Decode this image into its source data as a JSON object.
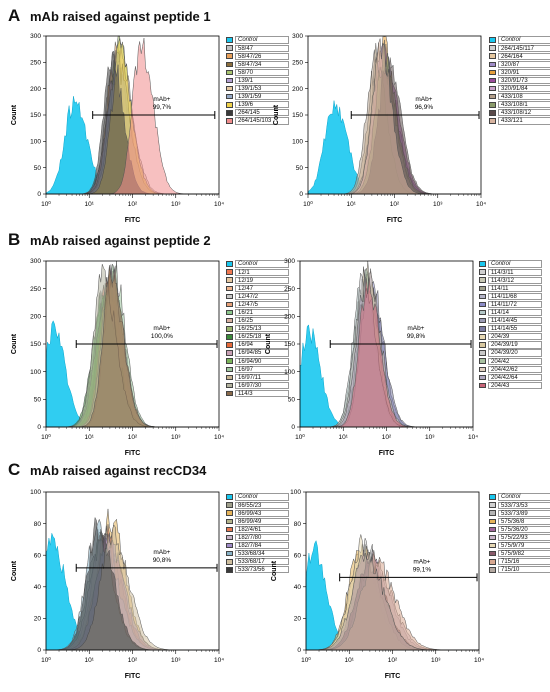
{
  "sections": [
    {
      "letter": "A",
      "title": "mAb raised against peptide 1"
    },
    {
      "letter": "B",
      "title": "mAb raised against peptide 2"
    },
    {
      "letter": "C",
      "title": "mAb raised against recCD34"
    }
  ],
  "chart_data": [
    {
      "id": "A1",
      "type": "area",
      "title": "",
      "xlabel": "FITC",
      "ylabel": "Count",
      "xscale": "log",
      "xlim": [
        1,
        10000
      ],
      "ylim": [
        0,
        300
      ],
      "yticks": [
        0,
        50,
        100,
        150,
        200,
        250,
        300
      ],
      "xticks": [
        "10⁰",
        "10¹",
        "10²",
        "10³",
        "10⁴"
      ],
      "gate": {
        "label": "mAb+",
        "percent": "99,7%",
        "x_range": [
          12,
          8000
        ],
        "y": 150
      },
      "legend": [
        "Control",
        "58/47",
        "58/47/26",
        "58/47/34",
        "58/70",
        "139/1",
        "139/1/53",
        "139/1/59",
        "139/6",
        "264/145",
        "264/145/103"
      ],
      "colors": [
        "#19c8ef",
        "#c0c0c0",
        "#e8a05a",
        "#8c6e3c",
        "#a8c46e",
        "#b4a0d2",
        "#e6c8a0",
        "#96aac8",
        "#f0d24a",
        "#3a3a3a",
        "#f08c8c"
      ],
      "series": [
        {
          "name": "Control",
          "peak_x": 4.5,
          "peak_y": 175,
          "width": 0.22
        },
        {
          "name": "58/47",
          "peak_x": 38,
          "peak_y": 250,
          "width": 0.2
        },
        {
          "name": "58/47/26",
          "peak_x": 40,
          "peak_y": 265,
          "width": 0.2
        },
        {
          "name": "58/47/34",
          "peak_x": 45,
          "peak_y": 270,
          "width": 0.2
        },
        {
          "name": "58/70",
          "peak_x": 48,
          "peak_y": 290,
          "width": 0.2
        },
        {
          "name": "139/1",
          "peak_x": 42,
          "peak_y": 240,
          "width": 0.22
        },
        {
          "name": "139/1/53",
          "peak_x": 50,
          "peak_y": 255,
          "width": 0.22
        },
        {
          "name": "139/1/59",
          "peak_x": 44,
          "peak_y": 245,
          "width": 0.21
        },
        {
          "name": "139/6",
          "peak_x": 52,
          "peak_y": 268,
          "width": 0.2
        },
        {
          "name": "264/145",
          "peak_x": 33,
          "peak_y": 262,
          "width": 0.19
        },
        {
          "name": "264/145/103",
          "peak_x": 160,
          "peak_y": 288,
          "width": 0.2
        }
      ]
    },
    {
      "id": "A2",
      "type": "area",
      "title": "",
      "xlabel": "FITC",
      "ylabel": "Count",
      "xscale": "log",
      "xlim": [
        1,
        10000
      ],
      "ylim": [
        0,
        300
      ],
      "yticks": [
        0,
        50,
        100,
        150,
        200,
        250,
        300
      ],
      "xticks": [
        "10⁰",
        "10¹",
        "10²",
        "10³",
        "10⁴"
      ],
      "gate": {
        "label": "mAb+",
        "percent": "96,9%",
        "x_range": [
          10,
          9000
        ],
        "y": 150
      },
      "legend": [
        "Control",
        "264/145/117",
        "264/164",
        "320/87",
        "320/91",
        "320/91/73",
        "320/91/84",
        "433/108",
        "433/108/1",
        "433/108/12",
        "433/121"
      ],
      "colors": [
        "#19c8ef",
        "#d0d0d0",
        "#e6c8a0",
        "#a08cc8",
        "#e6a03c",
        "#9a4a9a",
        "#c8a0c8",
        "#b4a08c",
        "#8a9a6a",
        "#5a4a4a",
        "#d8b4a0"
      ],
      "series": [
        {
          "name": "Control",
          "peak_x": 4,
          "peak_y": 172,
          "width": 0.22
        },
        {
          "name": "264/145/117",
          "peak_x": 45,
          "peak_y": 255,
          "width": 0.2
        },
        {
          "name": "264/164",
          "peak_x": 40,
          "peak_y": 265,
          "width": 0.2
        },
        {
          "name": "320/87",
          "peak_x": 60,
          "peak_y": 240,
          "width": 0.22
        },
        {
          "name": "320/91",
          "peak_x": 55,
          "peak_y": 285,
          "width": 0.2
        },
        {
          "name": "320/91/73",
          "peak_x": 65,
          "peak_y": 255,
          "width": 0.22
        },
        {
          "name": "320/91/84",
          "peak_x": 50,
          "peak_y": 260,
          "width": 0.22
        },
        {
          "name": "433/108",
          "peak_x": 35,
          "peak_y": 250,
          "width": 0.2
        },
        {
          "name": "433/108/1",
          "peak_x": 58,
          "peak_y": 262,
          "width": 0.21
        },
        {
          "name": "433/108/12",
          "peak_x": 70,
          "peak_y": 245,
          "width": 0.22
        },
        {
          "name": "433/121",
          "peak_x": 48,
          "peak_y": 268,
          "width": 0.2
        }
      ]
    },
    {
      "id": "B1",
      "type": "area",
      "title": "",
      "xlabel": "FITC",
      "ylabel": "Count",
      "xscale": "log",
      "xlim": [
        1,
        10000
      ],
      "ylim": [
        0,
        300
      ],
      "yticks": [
        0,
        50,
        100,
        150,
        200,
        250,
        300
      ],
      "xticks": [
        "10⁰",
        "10¹",
        "10²",
        "10³",
        "10⁴"
      ],
      "gate": {
        "label": "mAb+",
        "percent": "100,0%",
        "x_range": [
          5,
          9000
        ],
        "y": 150
      },
      "legend": [
        "Control",
        "12/1",
        "12/19",
        "12/47",
        "12/47/2",
        "12/47/5",
        "16/21",
        "16/25",
        "16/25/13",
        "16/25/18",
        "16/94",
        "16/94/85",
        "16/94/90",
        "16/97",
        "16/97/11",
        "16/97/30",
        "114/3"
      ],
      "colors": [
        "#19c8ef",
        "#f07850",
        "#e6c8a0",
        "#f0b48c",
        "#c8c8c8",
        "#e6a078",
        "#8cc88c",
        "#d8b0a0",
        "#9ab46e",
        "#3a8a3a",
        "#e66a3a",
        "#c8a0b4",
        "#7ab45a",
        "#a0c8a0",
        "#c8b490",
        "#b4b4a0",
        "#8a6a4a"
      ],
      "series": [
        {
          "name": "Control",
          "peak_x": 1.5,
          "peak_y": 178,
          "width": 0.2
        },
        {
          "name": "12/1",
          "peak_x": 25,
          "peak_y": 240,
          "width": 0.22
        },
        {
          "name": "12/19",
          "peak_x": 28,
          "peak_y": 250,
          "width": 0.22
        },
        {
          "name": "12/47",
          "peak_x": 24,
          "peak_y": 235,
          "width": 0.22
        },
        {
          "name": "12/47/2",
          "peak_x": 30,
          "peak_y": 255,
          "width": 0.21
        },
        {
          "name": "12/47/5",
          "peak_x": 26,
          "peak_y": 242,
          "width": 0.22
        },
        {
          "name": "16/21",
          "peak_x": 22,
          "peak_y": 248,
          "width": 0.22
        },
        {
          "name": "16/25",
          "peak_x": 32,
          "peak_y": 262,
          "width": 0.21
        },
        {
          "name": "16/25/13",
          "peak_x": 27,
          "peak_y": 258,
          "width": 0.22
        },
        {
          "name": "16/25/18",
          "peak_x": 20,
          "peak_y": 230,
          "width": 0.23
        },
        {
          "name": "16/94",
          "peak_x": 29,
          "peak_y": 265,
          "width": 0.21
        },
        {
          "name": "16/94/85",
          "peak_x": 34,
          "peak_y": 270,
          "width": 0.2
        },
        {
          "name": "16/94/90",
          "peak_x": 23,
          "peak_y": 244,
          "width": 0.22
        },
        {
          "name": "16/97",
          "peak_x": 36,
          "peak_y": 290,
          "width": 0.2
        },
        {
          "name": "16/97/11",
          "peak_x": 31,
          "peak_y": 275,
          "width": 0.21
        },
        {
          "name": "16/97/30",
          "peak_x": 21,
          "peak_y": 268,
          "width": 0.22
        },
        {
          "name": "114/3",
          "peak_x": 33,
          "peak_y": 280,
          "width": 0.2
        }
      ]
    },
    {
      "id": "B2",
      "type": "area",
      "title": "",
      "xlabel": "FITC",
      "ylabel": "Count",
      "xscale": "log",
      "xlim": [
        1,
        10000
      ],
      "ylim": [
        0,
        300
      ],
      "yticks": [
        0,
        50,
        100,
        150,
        200,
        250,
        300
      ],
      "xticks": [
        "10⁰",
        "10¹",
        "10²",
        "10³",
        "10⁴"
      ],
      "gate": {
        "label": "mAb+",
        "percent": "99,8%",
        "x_range": [
          5,
          9000
        ],
        "y": 150
      },
      "legend": [
        "Control",
        "114/3/11",
        "114/3/12",
        "114/11",
        "114/11/68",
        "114/11/72",
        "114/14",
        "114/14/45",
        "114/14/55",
        "204/39",
        "204/39/19",
        "204/39/20",
        "204/42",
        "204/42/62",
        "204/42/64",
        "204/43"
      ],
      "colors": [
        "#19c8ef",
        "#d0d0d0",
        "#c8c8b4",
        "#a0a08c",
        "#b4b4c8",
        "#8c8cc8",
        "#b4c8c8",
        "#9a9ab4",
        "#7a7aa0",
        "#e6d8b4",
        "#d8c8a0",
        "#c8c8c8",
        "#a8c0a0",
        "#e0d0c0",
        "#b0a8c0",
        "#c86478"
      ],
      "series": [
        {
          "name": "Control",
          "peak_x": 1.6,
          "peak_y": 172,
          "width": 0.2
        },
        {
          "name": "114/3/11",
          "peak_x": 30,
          "peak_y": 250,
          "width": 0.2
        },
        {
          "name": "114/3/12",
          "peak_x": 35,
          "peak_y": 262,
          "width": 0.2
        },
        {
          "name": "114/11",
          "peak_x": 28,
          "peak_y": 245,
          "width": 0.21
        },
        {
          "name": "114/11/68",
          "peak_x": 33,
          "peak_y": 258,
          "width": 0.2
        },
        {
          "name": "114/11/72",
          "peak_x": 42,
          "peak_y": 268,
          "width": 0.21
        },
        {
          "name": "114/14",
          "peak_x": 26,
          "peak_y": 252,
          "width": 0.2
        },
        {
          "name": "114/14/45",
          "peak_x": 38,
          "peak_y": 260,
          "width": 0.2
        },
        {
          "name": "114/14/55",
          "peak_x": 45,
          "peak_y": 255,
          "width": 0.21
        },
        {
          "name": "204/39",
          "peak_x": 32,
          "peak_y": 270,
          "width": 0.19
        },
        {
          "name": "204/39/19",
          "peak_x": 36,
          "peak_y": 290,
          "width": 0.19
        },
        {
          "name": "204/39/20",
          "peak_x": 29,
          "peak_y": 265,
          "width": 0.2
        },
        {
          "name": "204/42",
          "peak_x": 34,
          "peak_y": 275,
          "width": 0.19
        },
        {
          "name": "204/42/62",
          "peak_x": 40,
          "peak_y": 262,
          "width": 0.2
        },
        {
          "name": "204/42/64",
          "peak_x": 31,
          "peak_y": 258,
          "width": 0.2
        },
        {
          "name": "204/43",
          "peak_x": 37,
          "peak_y": 266,
          "width": 0.2
        }
      ]
    },
    {
      "id": "C1",
      "type": "area",
      "title": "",
      "xlabel": "FITC",
      "ylabel": "Count",
      "xscale": "log",
      "xlim": [
        1,
        10000
      ],
      "ylim": [
        0,
        100
      ],
      "yticks": [
        0,
        20,
        40,
        60,
        80,
        100
      ],
      "xticks": [
        "10⁰",
        "10¹",
        "10²",
        "10³",
        "10⁴"
      ],
      "gate": {
        "label": "mAb+",
        "percent": "90,8%",
        "x_range": [
          5,
          9000
        ],
        "y": 52
      },
      "legend": [
        "Control",
        "86/55/23",
        "86/99/43",
        "86/99/49",
        "182/4/61",
        "182/7/80",
        "182/7/84",
        "533/68/34",
        "533/68/17",
        "533/73/56"
      ],
      "colors": [
        "#19c8ef",
        "#a0a08c",
        "#e6b45a",
        "#b4b48c",
        "#e67850",
        "#c8b4c8",
        "#a08cc8",
        "#8ab4c8",
        "#d0c0a0",
        "#3a3a3a"
      ],
      "series": [
        {
          "name": "Control",
          "peak_x": 1.4,
          "peak_y": 67,
          "width": 0.24
        },
        {
          "name": "86/55/23",
          "peak_x": 18,
          "peak_y": 70,
          "width": 0.28
        },
        {
          "name": "86/99/43",
          "peak_x": 30,
          "peak_y": 82,
          "width": 0.26
        },
        {
          "name": "86/99/49",
          "peak_x": 22,
          "peak_y": 74,
          "width": 0.27
        },
        {
          "name": "182/4/61",
          "peak_x": 25,
          "peak_y": 72,
          "width": 0.27
        },
        {
          "name": "182/7/80",
          "peak_x": 20,
          "peak_y": 68,
          "width": 0.28
        },
        {
          "name": "182/7/84",
          "peak_x": 27,
          "peak_y": 70,
          "width": 0.28
        },
        {
          "name": "533/68/34",
          "peak_x": 15,
          "peak_y": 75,
          "width": 0.26
        },
        {
          "name": "533/68/17",
          "peak_x": 35,
          "peak_y": 72,
          "width": 0.28
        },
        {
          "name": "533/73/56",
          "peak_x": 16,
          "peak_y": 78,
          "width": 0.26
        }
      ]
    },
    {
      "id": "C2",
      "type": "area",
      "title": "",
      "xlabel": "FITC",
      "ylabel": "Count",
      "xscale": "log",
      "xlim": [
        1,
        10000
      ],
      "ylim": [
        0,
        100
      ],
      "yticks": [
        0,
        20,
        40,
        60,
        80,
        100
      ],
      "xticks": [
        "10⁰",
        "10¹",
        "10²",
        "10³",
        "10⁴"
      ],
      "gate": {
        "label": "mAb+",
        "percent": "99,1%",
        "x_range": [
          6,
          9000
        ],
        "y": 46
      },
      "legend": [
        "Control",
        "533/73/53",
        "533/73/89",
        "575/36/8",
        "575/36/20",
        "575/22/93",
        "575/9/79",
        "575/9/82",
        "715/16",
        "715/10"
      ],
      "colors": [
        "#19c8ef",
        "#d0d0d0",
        "#b4b4b4",
        "#e6b45a",
        "#a0649a",
        "#c8b4c8",
        "#e6d8b4",
        "#8a5a6a",
        "#d8a890",
        "#b4a8a0"
      ],
      "series": [
        {
          "name": "Control",
          "peak_x": 1.5,
          "peak_y": 65,
          "width": 0.22
        },
        {
          "name": "533/73/53",
          "peak_x": 22,
          "peak_y": 68,
          "width": 0.3
        },
        {
          "name": "533/73/89",
          "peak_x": 30,
          "peak_y": 60,
          "width": 0.32
        },
        {
          "name": "575/36/8",
          "peak_x": 18,
          "peak_y": 64,
          "width": 0.28
        },
        {
          "name": "575/36/20",
          "peak_x": 25,
          "peak_y": 62,
          "width": 0.3
        },
        {
          "name": "575/22/93",
          "peak_x": 35,
          "peak_y": 58,
          "width": 0.32
        },
        {
          "name": "575/9/79",
          "peak_x": 20,
          "peak_y": 66,
          "width": 0.29
        },
        {
          "name": "575/9/82",
          "peak_x": 28,
          "peak_y": 55,
          "width": 0.3
        },
        {
          "name": "715/16",
          "peak_x": 40,
          "peak_y": 57,
          "width": 0.33
        },
        {
          "name": "715/10",
          "peak_x": 24,
          "peak_y": 60,
          "width": 0.31
        }
      ]
    }
  ]
}
